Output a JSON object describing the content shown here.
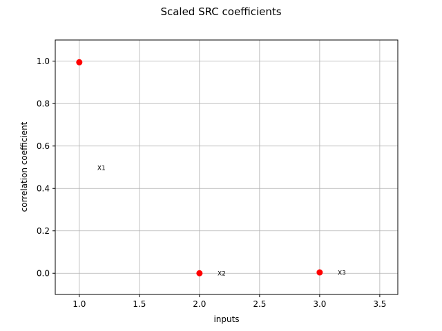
{
  "chart_data": {
    "type": "scatter",
    "title": "Scaled SRC coefficients",
    "xlabel": "inputs",
    "ylabel": "correlation coefficient",
    "xlim": [
      0.8,
      3.65
    ],
    "ylim": [
      -0.1,
      1.1
    ],
    "xticks": [
      1.0,
      1.5,
      2.0,
      2.5,
      3.0,
      3.5
    ],
    "xtick_labels": [
      "1.0",
      "1.5",
      "2.0",
      "2.5",
      "3.0",
      "3.5"
    ],
    "yticks": [
      0.0,
      0.2,
      0.4,
      0.6,
      0.8,
      1.0
    ],
    "ytick_labels": [
      "0.0",
      "0.2",
      "0.4",
      "0.6",
      "0.8",
      "1.0"
    ],
    "grid": true,
    "marker_color": "#ff0000",
    "points": [
      {
        "x": 1,
        "y": 0.995
      },
      {
        "x": 2,
        "y": 0.0
      },
      {
        "x": 3,
        "y": 0.004
      }
    ],
    "annotations": [
      {
        "text": "X1",
        "x": 1.15,
        "y": 0.497
      },
      {
        "text": "X2",
        "x": 2.15,
        "y": 0.0
      },
      {
        "text": "X3",
        "x": 3.15,
        "y": 0.002
      }
    ]
  }
}
